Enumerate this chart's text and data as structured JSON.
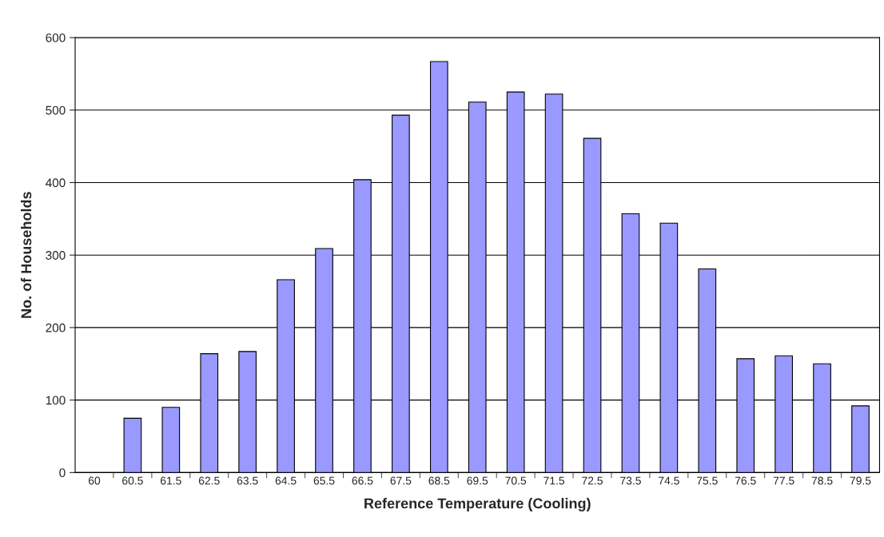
{
  "chart_data": {
    "type": "bar",
    "xlabel": "Reference Temperature (Cooling)",
    "ylabel": "No. of Households",
    "categories": [
      "60",
      "60.5",
      "61.5",
      "62.5",
      "63.5",
      "64.5",
      "65.5",
      "66.5",
      "67.5",
      "68.5",
      "69.5",
      "70.5",
      "71.5",
      "72.5",
      "73.5",
      "74.5",
      "75.5",
      "76.5",
      "77.5",
      "78.5",
      "79.5"
    ],
    "values": [
      null,
      75,
      90,
      164,
      167,
      266,
      309,
      404,
      493,
      567,
      511,
      525,
      522,
      461,
      357,
      344,
      281,
      157,
      161,
      150,
      92
    ],
    "color": "#9999ff",
    "ylim": [
      0,
      600
    ],
    "yticks": [
      0,
      100,
      200,
      300,
      400,
      500,
      600
    ],
    "grid": "y"
  }
}
